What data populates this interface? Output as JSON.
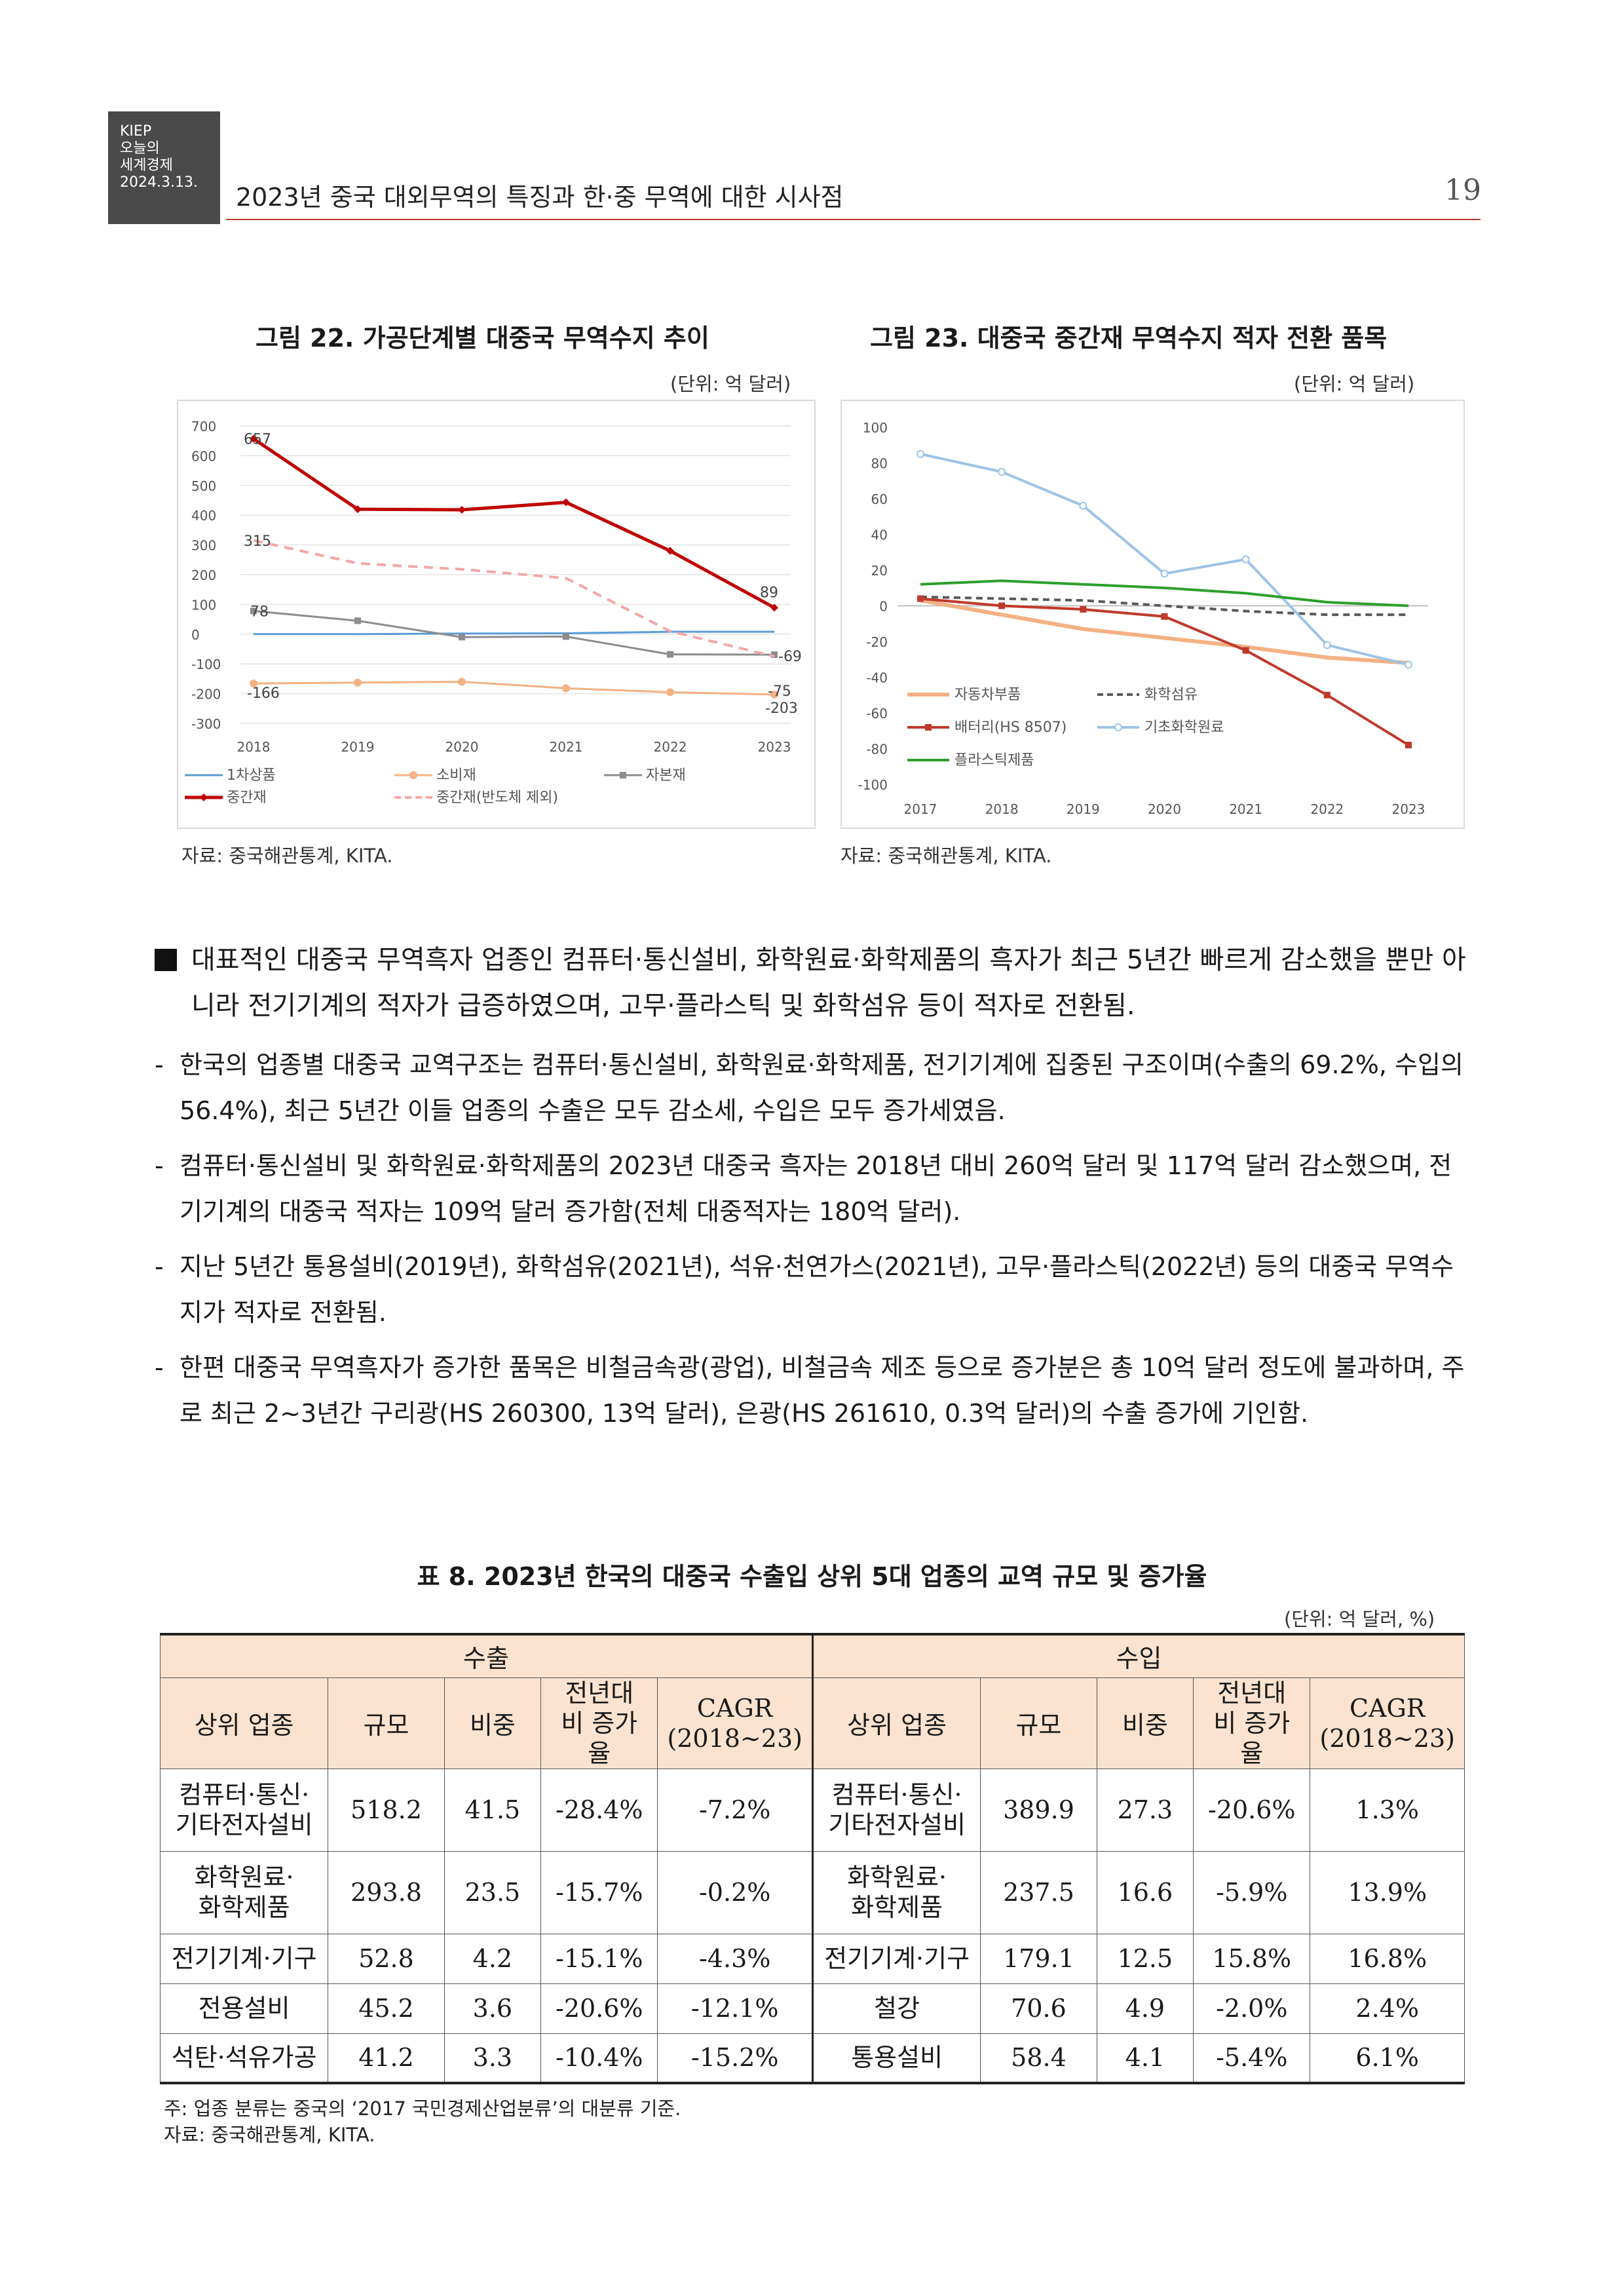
{
  "header": {
    "publisher_lines": [
      "KIEP",
      "오늘의",
      "세계경제",
      "2024.3.13."
    ],
    "title": "2023년 중국 대외무역의 특징과 한·중 무역에 대한 시사점",
    "page_number": "19"
  },
  "figure22": {
    "title": "그림 22. 가공단계별 대중국 무역수지 추이",
    "unit": "(단위: 억 달러)",
    "source": "자료: 중국해관통계, KITA.",
    "labels": [
      "657",
      "315",
      "78",
      "-166",
      "89",
      "-69",
      "-75",
      "-203"
    ]
  },
  "figure23": {
    "title": "그림 23. 대중국 중간재 무역수지 적자 전환 품목",
    "unit": "(단위: 억 달러)",
    "source": "자료: 중국해관통계, KITA."
  },
  "chart_data": [
    {
      "type": "line",
      "title": "그림 22. 가공단계별 대중국 무역수지 추이",
      "x": [
        "2018",
        "2019",
        "2020",
        "2021",
        "2022",
        "2023"
      ],
      "ylim": [
        -300,
        700
      ],
      "yticks": [
        "700",
        "600",
        "500",
        "400",
        "300",
        "200",
        "100",
        "0",
        "-100",
        "-200",
        "-300"
      ],
      "grid": true,
      "legend_placement": "bottom",
      "series": [
        {
          "name": "1차상품",
          "color": "#5b9bd5",
          "values": [
            0,
            0,
            2,
            3,
            8,
            8
          ]
        },
        {
          "name": "소비재",
          "color": "#f4b183",
          "values": [
            -166,
            -163,
            -160,
            -182,
            -195,
            -203
          ]
        },
        {
          "name": "자본재",
          "color": "#8c8c8c",
          "values": [
            78,
            45,
            -10,
            -8,
            -68,
            -69
          ]
        },
        {
          "name": "중간재",
          "color": "#c00000",
          "values": [
            657,
            420,
            418,
            443,
            280,
            89
          ]
        },
        {
          "name": "중간재(반도체 제외)",
          "color": "#f4a6a6",
          "values": [
            315,
            238,
            218,
            188,
            10,
            -75
          ]
        }
      ]
    },
    {
      "type": "line",
      "title": "그림 23. 대중국 중간재 무역수지 적자 전환 품목",
      "x": [
        "2017",
        "2018",
        "2019",
        "2020",
        "2021",
        "2022",
        "2023"
      ],
      "ylim": [
        -100,
        100
      ],
      "yticks": [
        "100",
        "80",
        "60",
        "40",
        "20",
        "0",
        "-20",
        "-40",
        "-60",
        "-80",
        "-100"
      ],
      "grid": false,
      "legend_placement": "bottom-left",
      "series": [
        {
          "name": "자동차부품",
          "color": "#f4b183",
          "values": [
            3,
            -5,
            -13,
            -18,
            -23,
            -29,
            -32
          ]
        },
        {
          "name": "화학섬유",
          "color": "#595959",
          "values": [
            5,
            4,
            3,
            0,
            -3,
            -5,
            -5
          ]
        },
        {
          "name": "배터리(HS 8507)",
          "color": "#c0392b",
          "values": [
            4,
            0,
            -2,
            -6,
            -25,
            -50,
            -78
          ]
        },
        {
          "name": "기초화학원료",
          "color": "#9dc3e6",
          "values": [
            85,
            75,
            56,
            18,
            26,
            -22,
            -33
          ]
        },
        {
          "name": "플라스틱제품",
          "color": "#2ca02c",
          "values": [
            12,
            14,
            12,
            10,
            7,
            2,
            0
          ]
        }
      ]
    }
  ],
  "body": {
    "bullet": "대표적인 대중국 무역흑자 업종인 컴퓨터·통신설비, 화학원료·화학제품의 흑자가 최근 5년간 빠르게 감소했을 뿐만 아니라 전기기계의 적자가 급증하였으며, 고무·플라스틱 및 화학섬유 등이 적자로 전환됨.",
    "dashes": [
      "한국의 업종별 대중국 교역구조는 컴퓨터·통신설비, 화학원료·화학제품, 전기기계에 집중된 구조이며(수출의 69.2%, 수입의 56.4%), 최근 5년간 이들 업종의 수출은 모두 감소세, 수입은 모두 증가세였음.",
      "컴퓨터·통신설비 및 화학원료·화학제품의 2023년 대중국 흑자는 2018년 대비 260억 달러 및 117억 달러 감소했으며, 전기기계의 대중국 적자는 109억 달러 증가함(전체 대중적자는 180억 달러).",
      "지난 5년간 통용설비(2019년), 화학섬유(2021년), 석유·천연가스(2021년), 고무·플라스틱(2022년) 등의 대중국 무역수지가 적자로 전환됨.",
      "한편 대중국 무역흑자가 증가한 품목은 비철금속광(광업), 비철금속 제조 등으로 증가분은 총 10억 달러 정도에 불과하며, 주로 최근 2~3년간 구리광(HS 260300, 13억 달러), 은광(HS 261610, 0.3억 달러)의 수출 증가에 기인함."
    ]
  },
  "table": {
    "title": "표 8. 2023년 한국의 대중국 수출입 상위 5대 업종의 교역 규모 및 증가율",
    "unit": "(단위: 억 달러, %)",
    "group_export": "수출",
    "group_import": "수입",
    "columns": [
      "상위 업종",
      "규모",
      "비중",
      "전년대비 증가율",
      "CAGR (2018~23)"
    ],
    "export_rows": [
      [
        "컴퓨터·통신·기타전자설비",
        "518.2",
        "41.5",
        "-28.4%",
        "-7.2%"
      ],
      [
        "화학원료·화학제품",
        "293.8",
        "23.5",
        "-15.7%",
        "-0.2%"
      ],
      [
        "전기기계·기구",
        "52.8",
        "4.2",
        "-15.1%",
        "-4.3%"
      ],
      [
        "전용설비",
        "45.2",
        "3.6",
        "-20.6%",
        "-12.1%"
      ],
      [
        "석탄·석유가공",
        "41.2",
        "3.3",
        "-10.4%",
        "-15.2%"
      ]
    ],
    "import_rows": [
      [
        "컴퓨터·통신·기타전자설비",
        "389.9",
        "27.3",
        "-20.6%",
        "1.3%"
      ],
      [
        "화학원료·화학제품",
        "237.5",
        "16.6",
        "-5.9%",
        "13.9%"
      ],
      [
        "전기기계·기구",
        "179.1",
        "12.5",
        "15.8%",
        "16.8%"
      ],
      [
        "철강",
        "70.6",
        "4.9",
        "-2.0%",
        "2.4%"
      ],
      [
        "통용설비",
        "58.4",
        "4.1",
        "-5.4%",
        "6.1%"
      ]
    ],
    "note": "주: 업종 분류는 중국의 ‘2017 국민경제산업분류’의 대분류 기준.",
    "source": "자료: 중국해관통계, KITA."
  }
}
